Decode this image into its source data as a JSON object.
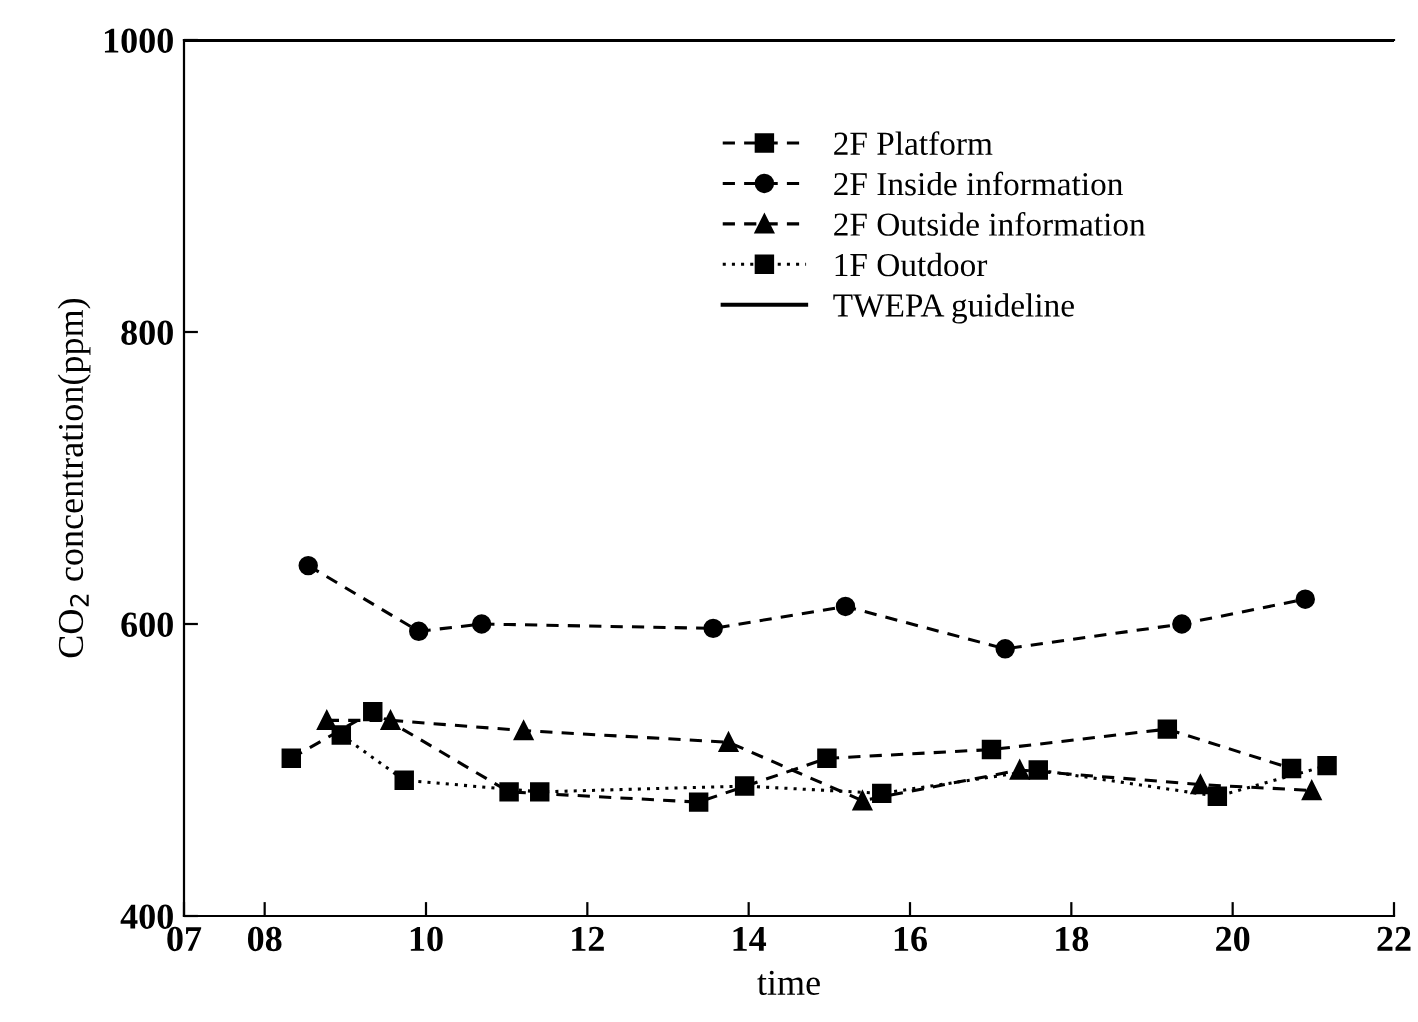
{
  "chart_data": {
    "type": "line",
    "xlabel": "time",
    "ylabel": "CO$_{2}$ concentration(ppm)",
    "xlim": [
      7,
      22
    ],
    "xticks": [
      {
        "value": 7,
        "label": "07"
      },
      {
        "value": 8,
        "label": "08"
      },
      10,
      12,
      14,
      16,
      18,
      20,
      22
    ],
    "ylim": [
      400,
      1000
    ],
    "yticks": [
      400,
      600,
      800,
      1000
    ],
    "grid": false,
    "legend": "top",
    "series": [
      {
        "name": "2F Platform",
        "color": "#000000",
        "marker": "square",
        "line_style": "dashed",
        "x": [
          8.33,
          9.34,
          11.03,
          13.38,
          14.97,
          17.01,
          19.19,
          20.73
        ],
        "values": [
          508,
          540,
          485,
          478,
          508,
          514,
          528,
          501
        ]
      },
      {
        "name": "2F Inside information",
        "color": "#000000",
        "marker": "circle",
        "line_style": "dashed",
        "x": [
          8.54,
          9.91,
          10.69,
          13.56,
          15.2,
          17.18,
          19.37,
          20.9
        ],
        "values": [
          640,
          595,
          600,
          597,
          612,
          583,
          600,
          617
        ]
      },
      {
        "name": "2F Outside information",
        "color": "#000000",
        "marker": "triangle",
        "line_style": "dashed",
        "x": [
          8.77,
          9.56,
          11.21,
          13.75,
          15.41,
          17.36,
          19.6,
          20.98
        ],
        "values": [
          534,
          534,
          527,
          519,
          479,
          500,
          490,
          486
        ]
      },
      {
        "name": "1F Outdoor",
        "color": "#000000",
        "marker": "square",
        "line_style": "dotted",
        "x": [
          8.95,
          9.73,
          11.41,
          13.95,
          15.65,
          17.59,
          19.81,
          21.17
        ],
        "values": [
          524,
          493,
          485,
          489,
          484,
          500,
          482,
          503
        ]
      }
    ],
    "ref_lines": [
      {
        "axis": "y",
        "value": 1000,
        "label": "TWEPA guideline",
        "color": "#000000",
        "line_style": "solid"
      }
    ]
  }
}
